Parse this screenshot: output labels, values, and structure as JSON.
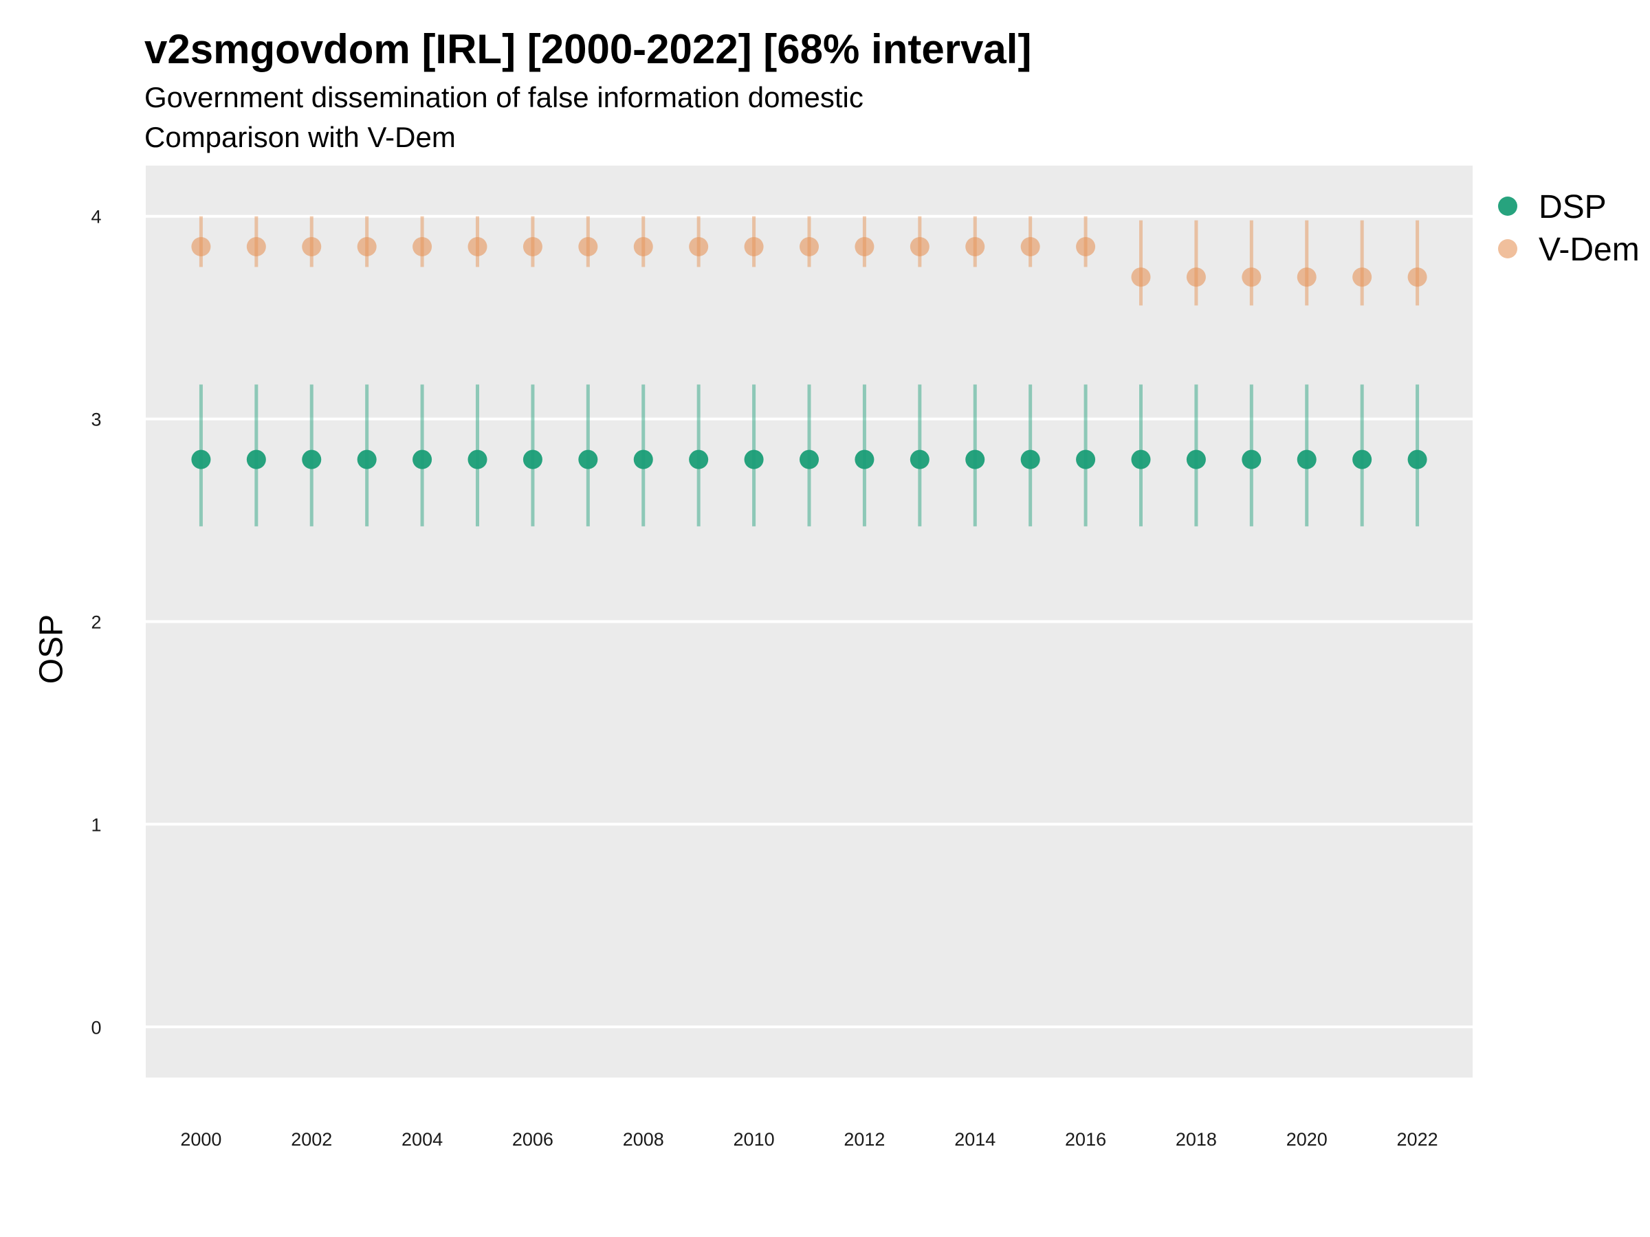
{
  "chart_data": {
    "type": "scatter",
    "title": "v2smgovdom [IRL] [2000-2022] [68% interval]",
    "subtitle_lines": [
      "Government dissemination of false information domestic",
      "Comparison with V-Dem"
    ],
    "ylabel": "OSP",
    "xlabel": "",
    "x": [
      2000,
      2001,
      2002,
      2003,
      2004,
      2005,
      2006,
      2007,
      2008,
      2009,
      2010,
      2011,
      2012,
      2013,
      2014,
      2015,
      2016,
      2017,
      2018,
      2019,
      2020,
      2021,
      2022
    ],
    "x_ticks": [
      2000,
      2002,
      2004,
      2006,
      2008,
      2010,
      2012,
      2014,
      2016,
      2018,
      2020,
      2022
    ],
    "y_ticks": [
      0,
      1,
      2,
      3,
      4
    ],
    "xlim": [
      1999.0,
      2023.0
    ],
    "ylim": [
      -0.25,
      4.25
    ],
    "grid": true,
    "legend_position": "right",
    "series": [
      {
        "name": "DSP",
        "color": "#1b9e77",
        "values": [
          2.8,
          2.8,
          2.8,
          2.8,
          2.8,
          2.8,
          2.8,
          2.8,
          2.8,
          2.8,
          2.8,
          2.8,
          2.8,
          2.8,
          2.8,
          2.8,
          2.8,
          2.8,
          2.8,
          2.8,
          2.8,
          2.8,
          2.8
        ],
        "lower": [
          2.47,
          2.47,
          2.47,
          2.47,
          2.47,
          2.47,
          2.47,
          2.47,
          2.47,
          2.47,
          2.47,
          2.47,
          2.47,
          2.47,
          2.47,
          2.47,
          2.47,
          2.47,
          2.47,
          2.47,
          2.47,
          2.47,
          2.47
        ],
        "upper": [
          3.17,
          3.17,
          3.17,
          3.17,
          3.17,
          3.17,
          3.17,
          3.17,
          3.17,
          3.17,
          3.17,
          3.17,
          3.17,
          3.17,
          3.17,
          3.17,
          3.17,
          3.17,
          3.17,
          3.17,
          3.17,
          3.17,
          3.17
        ]
      },
      {
        "name": "V-Dem",
        "color": "#e6955a",
        "values": [
          3.85,
          3.85,
          3.85,
          3.85,
          3.85,
          3.85,
          3.85,
          3.85,
          3.85,
          3.85,
          3.85,
          3.85,
          3.85,
          3.85,
          3.85,
          3.85,
          3.85,
          3.7,
          3.7,
          3.7,
          3.7,
          3.7,
          3.7
        ],
        "lower": [
          3.75,
          3.75,
          3.75,
          3.75,
          3.75,
          3.75,
          3.75,
          3.75,
          3.75,
          3.75,
          3.75,
          3.75,
          3.75,
          3.75,
          3.75,
          3.75,
          3.75,
          3.56,
          3.56,
          3.56,
          3.56,
          3.56,
          3.56
        ],
        "upper": [
          4.0,
          4.0,
          4.0,
          4.0,
          4.0,
          4.0,
          4.0,
          4.0,
          4.0,
          4.0,
          4.0,
          4.0,
          4.0,
          4.0,
          4.0,
          4.0,
          4.0,
          3.98,
          3.98,
          3.98,
          3.98,
          3.98,
          3.98
        ]
      }
    ]
  }
}
